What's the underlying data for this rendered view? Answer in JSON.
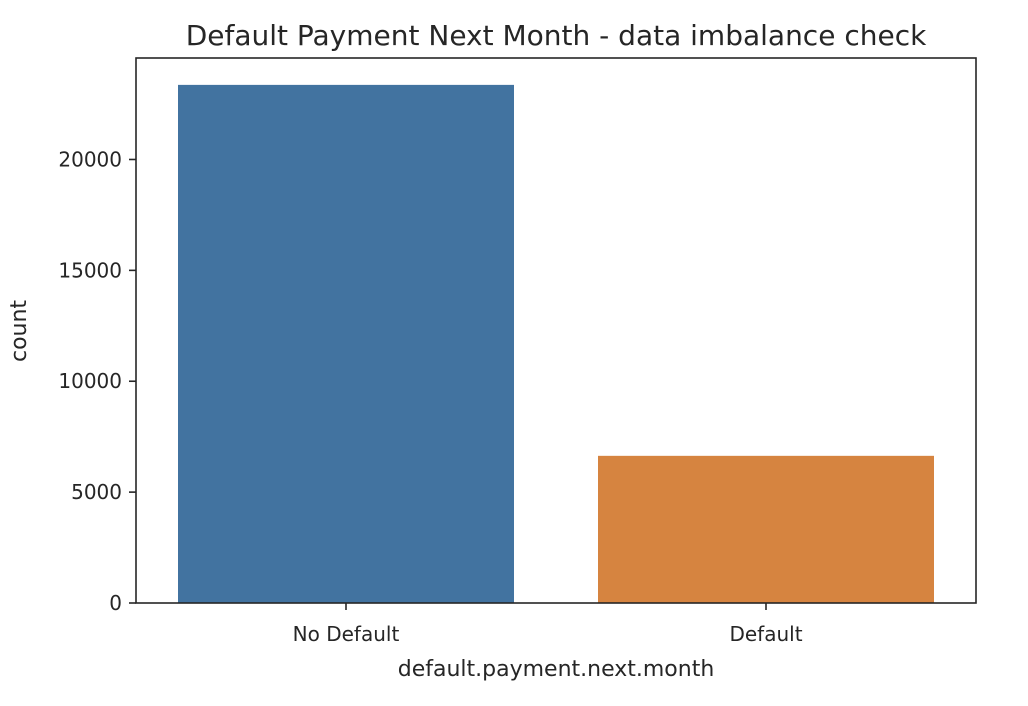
{
  "chart_data": {
    "type": "bar",
    "title": "Default Payment Next Month - data imbalance check",
    "xlabel": "default.payment.next.month",
    "ylabel": "count",
    "categories": [
      "No Default",
      "Default"
    ],
    "values": [
      23364,
      6636
    ],
    "colors": [
      "#4273a0",
      "#d68440"
    ],
    "ylim": [
      0,
      24576
    ],
    "yticks": [
      0,
      5000,
      10000,
      15000,
      20000
    ],
    "grid": false,
    "legend": "none"
  }
}
